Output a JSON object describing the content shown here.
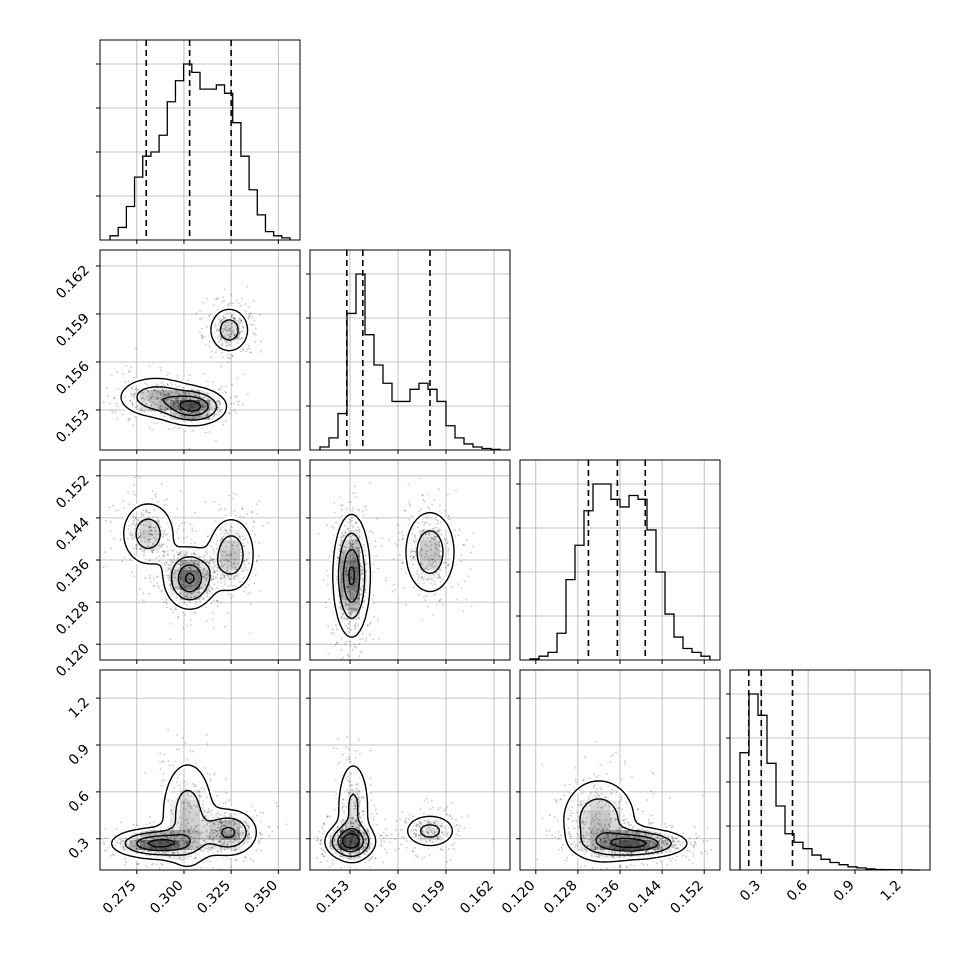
{
  "chart_data": {
    "type": "corner",
    "variables": [
      {
        "ticks": [
          0.275,
          0.3,
          0.325,
          0.35
        ],
        "tick_labels": [
          "0.275",
          "0.300",
          "0.325",
          "0.350"
        ],
        "range": [
          0.2555,
          0.3615
        ],
        "quantiles": [
          0.28,
          0.303,
          0.325
        ]
      },
      {
        "ticks": [
          0.153,
          0.156,
          0.159,
          0.162
        ],
        "tick_labels": [
          "0.153",
          "0.156",
          "0.159",
          "0.162"
        ],
        "range": [
          0.1505,
          0.163
        ],
        "quantiles": [
          0.1528,
          0.1538,
          0.158
        ]
      },
      {
        "ticks": [
          0.12,
          0.128,
          0.136,
          0.144,
          0.152
        ],
        "tick_labels": [
          "0.120",
          "0.128",
          "0.136",
          "0.144",
          "0.152"
        ],
        "range": [
          0.117,
          0.155
        ],
        "quantiles": [
          0.13,
          0.1355,
          0.1408
        ]
      },
      {
        "ticks": [
          0.3,
          0.6,
          0.9,
          1.2
        ],
        "tick_labels": [
          "0.3",
          "0.6",
          "0.9",
          "1.2"
        ],
        "range": [
          0.1,
          1.38
        ],
        "quantiles": [
          0.22,
          0.3,
          0.5
        ]
      }
    ],
    "histograms": [
      [
        1,
        3,
        8,
        15,
        20,
        21,
        25,
        33,
        38,
        42,
        40,
        36,
        36,
        37,
        35,
        28,
        20,
        12,
        6,
        2,
        1,
        0.5
      ],
      [
        1,
        4,
        12,
        45,
        58,
        38,
        28,
        22,
        16,
        16,
        20,
        22,
        20,
        16,
        8,
        4,
        2,
        1,
        0.5,
        0.2
      ],
      [
        0.3,
        1,
        2,
        7,
        21,
        30,
        39,
        46,
        46,
        42,
        40,
        43,
        42,
        34,
        23,
        12,
        6,
        3,
        2,
        1
      ],
      [
        110,
        165,
        145,
        100,
        60,
        34,
        26,
        20,
        14,
        10,
        7,
        5,
        3,
        2,
        1,
        0.5,
        0.3,
        0.2,
        0.1,
        0
      ]
    ],
    "joint_modes": [
      {
        "pair": [
          0,
          1
        ],
        "modes": [
          [
            0.285,
            0.1538,
            0.011,
            0.0007,
            0.6
          ],
          [
            0.305,
            0.1532,
            0.009,
            0.0006,
            1.0
          ],
          [
            0.324,
            0.158,
            0.006,
            0.0008,
            0.55
          ]
        ]
      },
      {
        "pair": [
          0,
          2
        ],
        "modes": [
          [
            0.281,
            0.141,
            0.008,
            0.0035,
            0.55
          ],
          [
            0.303,
            0.1325,
            0.007,
            0.003,
            1.0
          ],
          [
            0.325,
            0.137,
            0.007,
            0.004,
            0.6
          ]
        ]
      },
      {
        "pair": [
          0,
          3
        ],
        "modes": [
          [
            0.285,
            0.27,
            0.012,
            0.05,
            1.0
          ],
          [
            0.302,
            0.45,
            0.008,
            0.2,
            0.55
          ],
          [
            0.324,
            0.34,
            0.008,
            0.08,
            0.75
          ]
        ]
      },
      {
        "pair": [
          1,
          2
        ],
        "modes": [
          [
            0.1531,
            0.133,
            0.0006,
            0.006,
            1.0
          ],
          [
            0.158,
            0.1375,
            0.0009,
            0.0045,
            0.6
          ]
        ]
      },
      {
        "pair": [
          1,
          3
        ],
        "modes": [
          [
            0.153,
            0.28,
            0.0008,
            0.06,
            1.0
          ],
          [
            0.1532,
            0.5,
            0.0006,
            0.18,
            0.45
          ],
          [
            0.158,
            0.35,
            0.0009,
            0.06,
            0.5
          ]
        ]
      },
      {
        "pair": [
          2,
          3
        ],
        "modes": [
          [
            0.139,
            0.27,
            0.005,
            0.05,
            1.0
          ],
          [
            0.132,
            0.42,
            0.004,
            0.15,
            0.6
          ]
        ]
      }
    ],
    "grid": true,
    "xlabel": "",
    "ylabel": ""
  }
}
